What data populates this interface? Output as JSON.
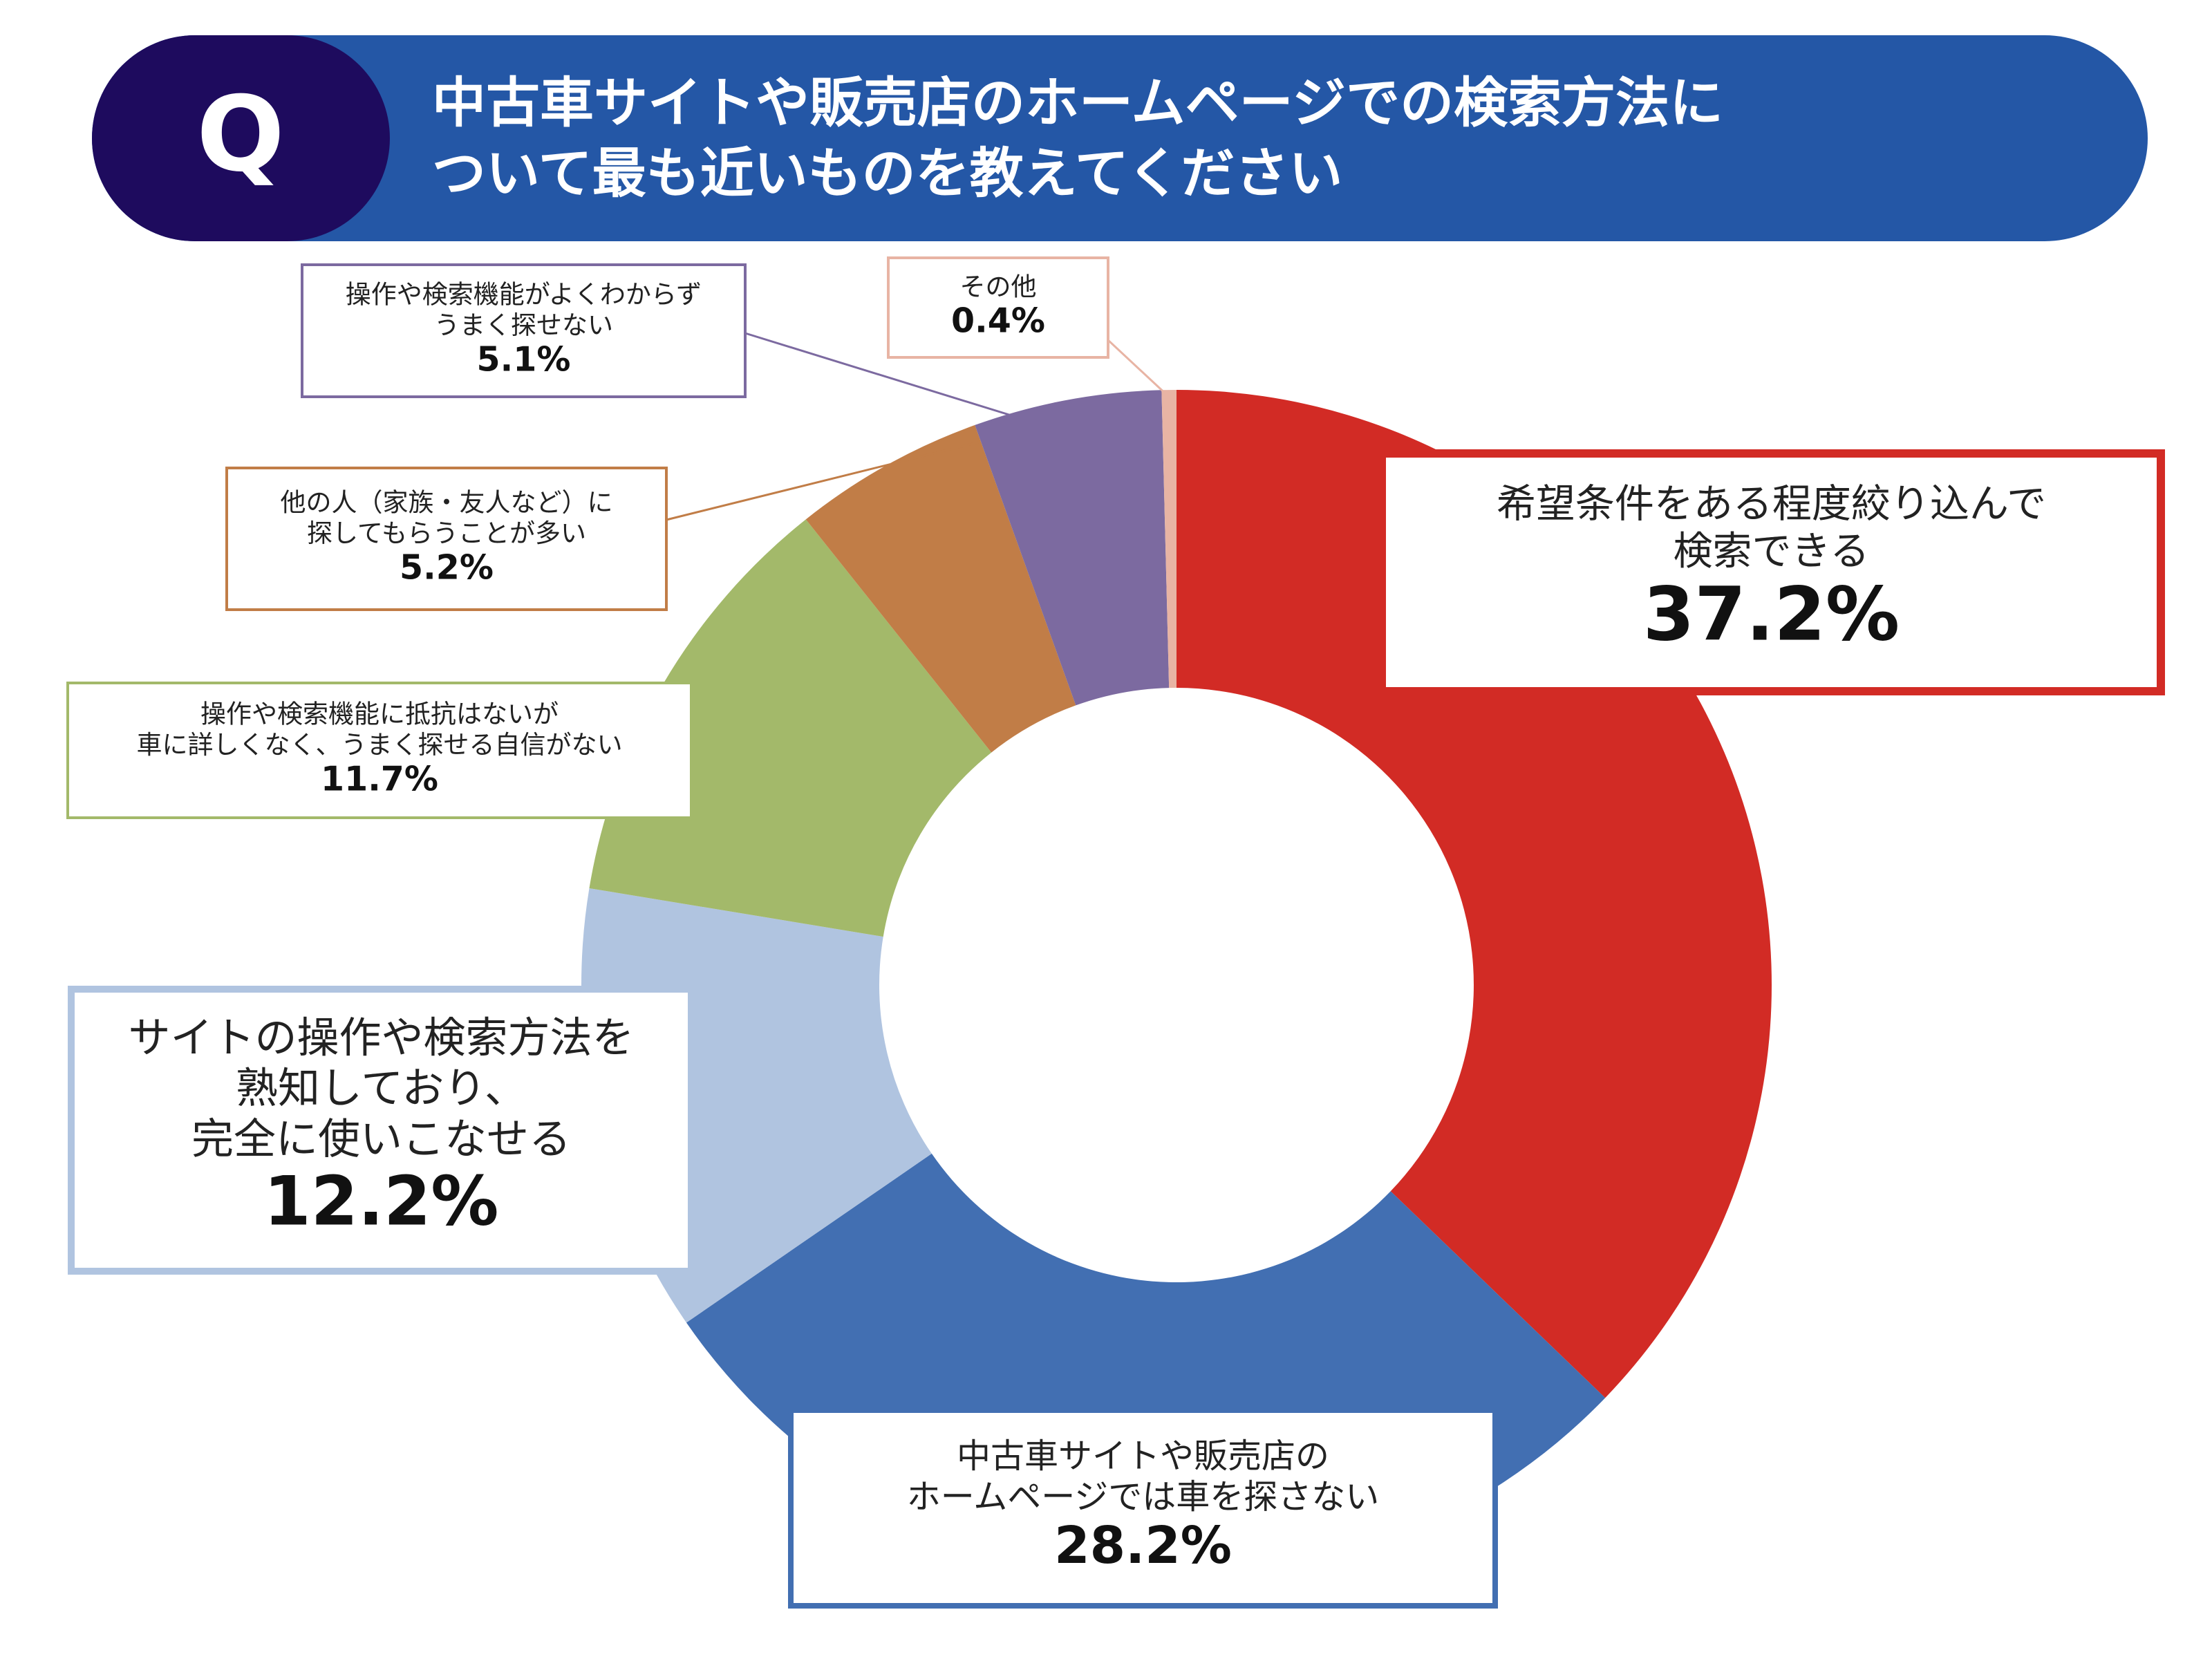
{
  "header": {
    "marker": "Q"
  },
  "chart_data": {
    "type": "donut",
    "title": [
      "中古車サイトや販売店のホームページでの検索方法に",
      "ついて最も近いものを教えてください"
    ],
    "categories": [
      [
        "希望条件をある程度絞り込んで",
        "検索できる"
      ],
      [
        "中古車サイトや販売店の",
        "ホームページでは車を探さない"
      ],
      [
        "サイトの操作や検索方法を",
        "熟知しており、",
        "完全に使いこなせる"
      ],
      [
        "操作や検索機能に抵抗はないが",
        "車に詳しくなく、うまく探せる自信がない"
      ],
      [
        "他の人（家族・友人など）に",
        "探してもらうことが多い"
      ],
      [
        "操作や検索機能がよくわからず",
        "うまく探せない"
      ],
      [
        "その他"
      ]
    ],
    "values": [
      37.2,
      28.2,
      12.2,
      11.7,
      5.2,
      5.1,
      0.4
    ],
    "value_labels": [
      "37.2%",
      "28.2%",
      "12.2%",
      "11.7%",
      "5.2%",
      "5.1%",
      "0.4%"
    ],
    "colors": [
      "#d22b25",
      "#426fb2",
      "#b0c4e0",
      "#a3b96a",
      "#c17d47",
      "#7c6aa0",
      "#e8b4a4"
    ]
  }
}
